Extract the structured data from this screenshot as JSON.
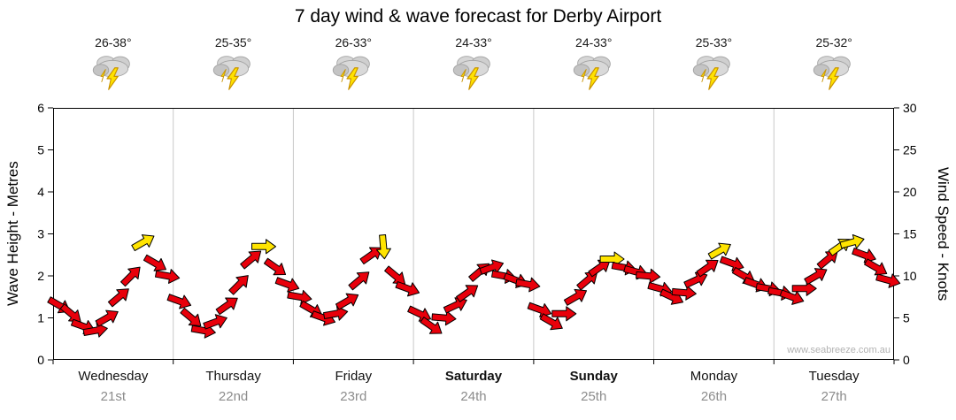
{
  "title": "7 day wind & wave forecast for Derby Airport",
  "watermark": "www.seabreeze.com.au",
  "axes": {
    "left_label": "Wave Height - Metres",
    "right_label": "Wind Speed - Knots",
    "left_ticks": [
      "0",
      "1",
      "2",
      "3",
      "4",
      "5",
      "6"
    ],
    "right_ticks": [
      "0",
      "5",
      "10",
      "15",
      "20",
      "25",
      "30"
    ]
  },
  "days": [
    {
      "name": "Wednesday",
      "date": "21st",
      "temp": "26-38°",
      "icon": "storm-icon",
      "bold": false
    },
    {
      "name": "Thursday",
      "date": "22nd",
      "temp": "25-35°",
      "icon": "storm-icon",
      "bold": false
    },
    {
      "name": "Friday",
      "date": "23rd",
      "temp": "26-33°",
      "icon": "storm-icon",
      "bold": false
    },
    {
      "name": "Saturday",
      "date": "24th",
      "temp": "24-33°",
      "icon": "storm-icon",
      "bold": true
    },
    {
      "name": "Sunday",
      "date": "25th",
      "temp": "24-33°",
      "icon": "storm-icon",
      "bold": true
    },
    {
      "name": "Monday",
      "date": "26th",
      "temp": "25-33°",
      "icon": "storm-icon",
      "bold": false
    },
    {
      "name": "Tuesday",
      "date": "27th",
      "temp": "25-32°",
      "icon": "storm-icon",
      "bold": false
    }
  ],
  "chart_data": {
    "type": "scatter",
    "subtype": "wind-direction-arrows",
    "title": "7 day wind & wave forecast for Derby Airport",
    "x_categories": [
      "Wednesday 21st",
      "Thursday 22nd",
      "Friday 23rd",
      "Saturday 24th",
      "Sunday 25th",
      "Monday 26th",
      "Tuesday 27th"
    ],
    "y_left": {
      "label": "Wave Height - Metres",
      "range": [
        0,
        6
      ]
    },
    "y_right": {
      "label": "Wind Speed - Knots",
      "range": [
        0,
        30
      ]
    },
    "grid": "vertical day separators only",
    "colors": {
      "arrow": "#e8000b",
      "arrow_strong": "#ffe400",
      "outline": "#000000",
      "separator": "#c9c9c9"
    },
    "point_format": [
      "day_index",
      "day_fraction",
      "wind_knots",
      "direction_deg_toward",
      "strong_flag"
    ],
    "series": [
      {
        "name": "Wind Speed (knots)",
        "points": [
          [
            0,
            0.05,
            6.5,
            120,
            0
          ],
          [
            0,
            0.15,
            5.5,
            130,
            0
          ],
          [
            0,
            0.25,
            4.0,
            110,
            0
          ],
          [
            0,
            0.35,
            3.5,
            80,
            0
          ],
          [
            0,
            0.45,
            5.0,
            60,
            0
          ],
          [
            0,
            0.55,
            7.5,
            50,
            0
          ],
          [
            0,
            0.65,
            10.0,
            45,
            0
          ],
          [
            0,
            0.75,
            14.0,
            60,
            1
          ],
          [
            0,
            0.85,
            11.5,
            120,
            0
          ],
          [
            0,
            0.95,
            10.0,
            100,
            0
          ],
          [
            1,
            0.05,
            7.0,
            110,
            0
          ],
          [
            1,
            0.15,
            5.0,
            130,
            0
          ],
          [
            1,
            0.25,
            3.5,
            100,
            0
          ],
          [
            1,
            0.35,
            4.5,
            70,
            0
          ],
          [
            1,
            0.45,
            6.5,
            55,
            0
          ],
          [
            1,
            0.55,
            9.0,
            45,
            0
          ],
          [
            1,
            0.65,
            12.0,
            50,
            0
          ],
          [
            1,
            0.75,
            13.5,
            90,
            1
          ],
          [
            1,
            0.85,
            11.0,
            125,
            0
          ],
          [
            1,
            0.95,
            9.0,
            110,
            0
          ],
          [
            2,
            0.05,
            7.5,
            100,
            0
          ],
          [
            2,
            0.15,
            6.0,
            120,
            0
          ],
          [
            2,
            0.25,
            5.0,
            110,
            0
          ],
          [
            2,
            0.35,
            5.5,
            80,
            0
          ],
          [
            2,
            0.45,
            7.0,
            60,
            0
          ],
          [
            2,
            0.55,
            9.5,
            50,
            0
          ],
          [
            2,
            0.65,
            12.5,
            55,
            0
          ],
          [
            2,
            0.75,
            13.5,
            175,
            1
          ],
          [
            2,
            0.85,
            10.0,
            130,
            0
          ],
          [
            2,
            0.95,
            8.5,
            110,
            0
          ],
          [
            3,
            0.05,
            5.5,
            115,
            0
          ],
          [
            3,
            0.15,
            4.0,
            125,
            0
          ],
          [
            3,
            0.25,
            5.0,
            95,
            0
          ],
          [
            3,
            0.35,
            6.5,
            65,
            0
          ],
          [
            3,
            0.45,
            8.0,
            55,
            0
          ],
          [
            3,
            0.55,
            10.5,
            50,
            0
          ],
          [
            3,
            0.65,
            11.0,
            70,
            0
          ],
          [
            3,
            0.75,
            10.0,
            100,
            0
          ],
          [
            3,
            0.85,
            9.5,
            110,
            0
          ],
          [
            3,
            0.95,
            9.0,
            100,
            0
          ],
          [
            4,
            0.05,
            6.0,
            110,
            0
          ],
          [
            4,
            0.15,
            4.5,
            120,
            0
          ],
          [
            4,
            0.25,
            5.5,
            90,
            0
          ],
          [
            4,
            0.35,
            7.5,
            60,
            0
          ],
          [
            4,
            0.45,
            9.5,
            50,
            0
          ],
          [
            4,
            0.55,
            11.0,
            55,
            0
          ],
          [
            4,
            0.65,
            12.0,
            90,
            1
          ],
          [
            4,
            0.75,
            11.0,
            100,
            0
          ],
          [
            4,
            0.85,
            10.5,
            105,
            0
          ],
          [
            4,
            0.95,
            10.0,
            95,
            0
          ],
          [
            5,
            0.05,
            8.5,
            105,
            0
          ],
          [
            5,
            0.15,
            7.5,
            115,
            0
          ],
          [
            5,
            0.25,
            8.0,
            95,
            0
          ],
          [
            5,
            0.35,
            9.5,
            65,
            0
          ],
          [
            5,
            0.45,
            11.0,
            55,
            0
          ],
          [
            5,
            0.55,
            13.0,
            60,
            1
          ],
          [
            5,
            0.65,
            11.5,
            110,
            0
          ],
          [
            5,
            0.75,
            10.0,
            120,
            0
          ],
          [
            5,
            0.85,
            9.0,
            110,
            0
          ],
          [
            5,
            0.95,
            8.5,
            100,
            0
          ],
          [
            6,
            0.05,
            8.0,
            100,
            0
          ],
          [
            6,
            0.15,
            7.5,
            110,
            0
          ],
          [
            6,
            0.25,
            8.5,
            90,
            0
          ],
          [
            6,
            0.35,
            10.0,
            60,
            0
          ],
          [
            6,
            0.45,
            12.0,
            50,
            0
          ],
          [
            6,
            0.55,
            13.5,
            55,
            1
          ],
          [
            6,
            0.65,
            14.0,
            75,
            1
          ],
          [
            6,
            0.75,
            12.5,
            110,
            0
          ],
          [
            6,
            0.85,
            11.0,
            120,
            0
          ],
          [
            6,
            0.95,
            9.5,
            105,
            0
          ]
        ]
      }
    ]
  }
}
